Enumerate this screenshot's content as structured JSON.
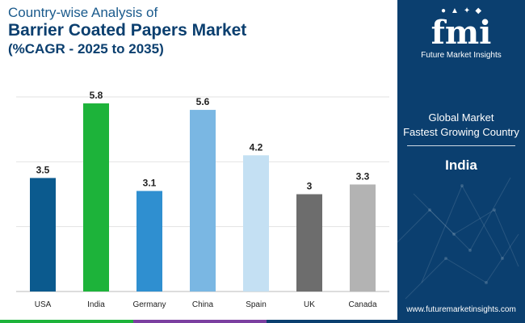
{
  "header": {
    "title_line1": "Country-wise Analysis of",
    "title_line2": "Barrier Coated Papers Market",
    "title_line3": "(%CAGR - 2025 to 2035)"
  },
  "chart_data": {
    "type": "bar",
    "categories": [
      "USA",
      "India",
      "Germany",
      "China",
      "Spain",
      "UK",
      "Canada"
    ],
    "values": [
      3.5,
      5.8,
      3.1,
      5.6,
      4.2,
      3,
      3.3
    ],
    "value_labels": [
      "3.5",
      "5.8",
      "3.1",
      "5.6",
      "4.2",
      "3",
      "3.3"
    ],
    "colors": [
      "#0b5a8e",
      "#1db33a",
      "#2f8fd0",
      "#7ab7e3",
      "#c4e0f3",
      "#6d6d6d",
      "#b3b3b3"
    ],
    "ylim": [
      0,
      6
    ],
    "grid": true,
    "legend": "none"
  },
  "panel": {
    "brand": "fmi",
    "brand_name": "Future Market Insights",
    "label_line1": "Global Market",
    "label_line2": "Fastest Growing Country",
    "highlight_value": "India",
    "website": "www.futuremarketinsights.com",
    "background_color": "#0b3f6f"
  },
  "footer": {
    "colors": [
      "#1db33a",
      "#7b3fa0",
      "#0b3f6f"
    ]
  }
}
